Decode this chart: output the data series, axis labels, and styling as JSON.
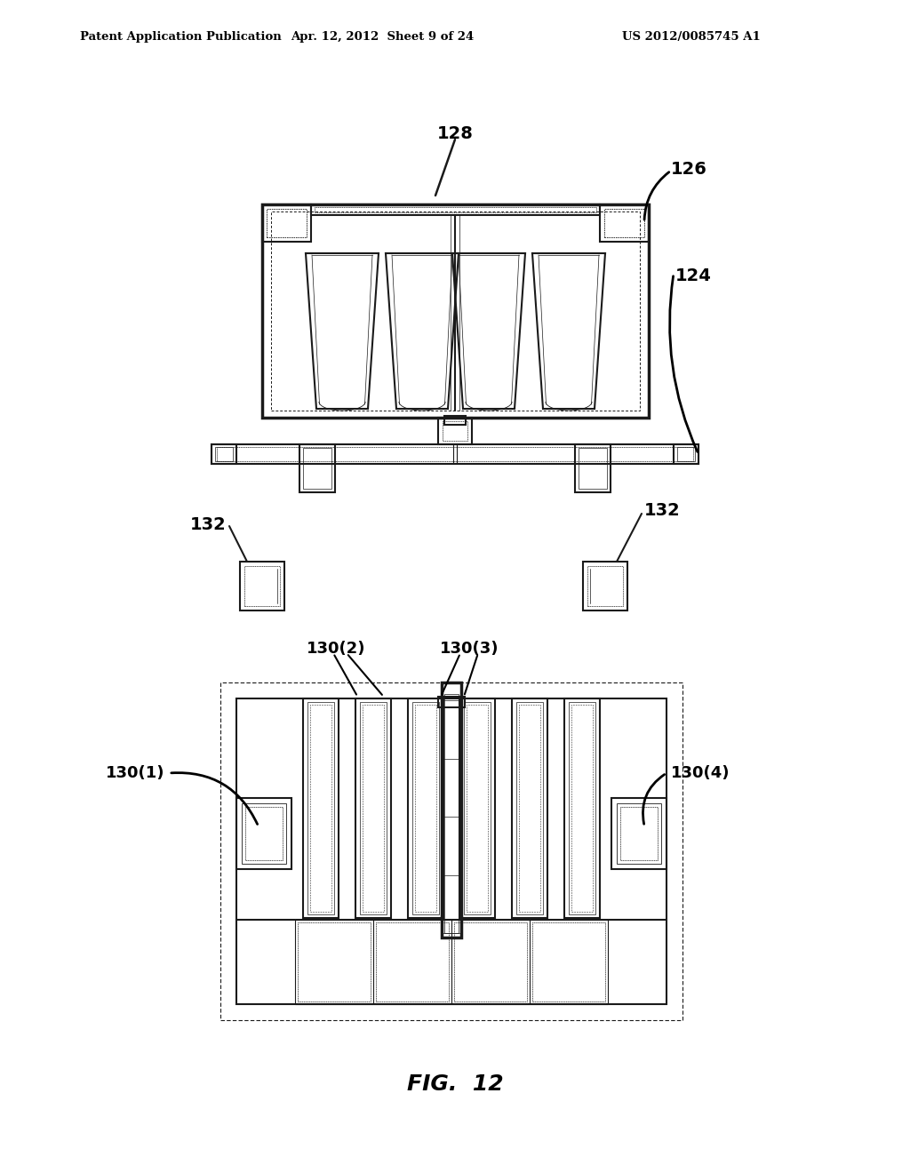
{
  "background_color": "#ffffff",
  "header_left": "Patent Application Publication",
  "header_mid": "Apr. 12, 2012  Sheet 9 of 24",
  "header_right": "US 2012/0085745 A1",
  "fig_label": "FIG.  12"
}
